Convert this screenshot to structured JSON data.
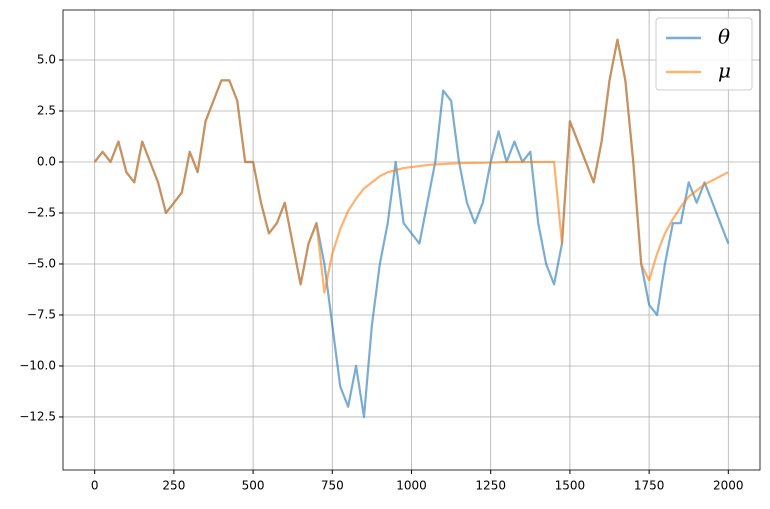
{
  "chart_data": {
    "type": "line",
    "x": [
      0,
      25,
      50,
      75,
      100,
      125,
      150,
      175,
      200,
      225,
      250,
      275,
      300,
      325,
      350,
      375,
      400,
      425,
      450,
      475,
      500,
      525,
      550,
      575,
      600,
      625,
      650,
      675,
      700,
      725,
      750,
      775,
      800,
      825,
      850,
      875,
      900,
      925,
      950,
      975,
      1000,
      1025,
      1050,
      1075,
      1100,
      1125,
      1150,
      1175,
      1200,
      1225,
      1250,
      1275,
      1300,
      1325,
      1350,
      1375,
      1400,
      1425,
      1450,
      1475,
      1500,
      1525,
      1550,
      1575,
      1600,
      1625,
      1650,
      1675,
      1700,
      1725,
      1750,
      1775,
      1800,
      1825,
      1850,
      1875,
      1900,
      1925,
      1950,
      1975,
      2000
    ],
    "series": [
      {
        "name": "θ",
        "color": "#1f77b4",
        "values": [
          0,
          0.5,
          0,
          1,
          -0.5,
          -1,
          1,
          0,
          -1,
          -2.5,
          -2,
          -1.5,
          0.5,
          -0.5,
          2,
          3,
          4,
          4,
          3,
          0,
          0,
          -2,
          -3.5,
          -3,
          -2,
          -4,
          -6,
          -4,
          -3,
          -5,
          -8,
          -11,
          -12,
          -10,
          -12.5,
          -8,
          -5,
          -3,
          0,
          -3,
          -3.5,
          -4,
          -2,
          0,
          3.5,
          3,
          0,
          -2,
          -3,
          -2,
          0,
          1.5,
          0,
          1,
          0,
          0.5,
          -3,
          -5,
          -6,
          -4,
          2,
          1,
          0,
          -1,
          1,
          4,
          6,
          4,
          0,
          -5,
          -7,
          -7.5,
          -5,
          -3,
          -3,
          -1,
          -2,
          -1,
          -2,
          -3,
          -4
        ]
      },
      {
        "name": "μ",
        "color": "#ff7f0e",
        "values": [
          0,
          0.5,
          0,
          1,
          -0.5,
          -1,
          1,
          0,
          -1,
          -2.5,
          -2,
          -1.5,
          0.5,
          -0.5,
          2,
          3,
          4,
          4,
          3,
          0,
          0,
          -2,
          -3.5,
          -3,
          -2,
          -4,
          -6,
          -4,
          -3,
          -6.4,
          -4.5,
          -3.3,
          -2.4,
          -1.8,
          -1.3,
          -1,
          -0.7,
          -0.5,
          -0.4,
          -0.3,
          -0.25,
          -0.2,
          -0.15,
          -0.12,
          -0.1,
          -0.08,
          -0.06,
          -0.05,
          -0.05,
          -0.04,
          -0.03,
          -0.02,
          0,
          0,
          0,
          0,
          0,
          0,
          0,
          -4,
          2,
          1,
          0,
          -1,
          1,
          4,
          6,
          4,
          0,
          -5,
          -5.8,
          -4.5,
          -3.5,
          -2.8,
          -2.2,
          -1.7,
          -1.4,
          -1.1,
          -0.9,
          -0.7,
          -0.5
        ]
      }
    ],
    "xlim": [
      -100,
      2100
    ],
    "ylim": [
      -15.1,
      7.45
    ],
    "xticks": [
      0,
      250,
      500,
      750,
      1000,
      1250,
      1500,
      1750,
      2000
    ],
    "yticks": [
      {
        "value": 5,
        "label": "5.0"
      },
      {
        "value": 2.5,
        "label": "2.5"
      },
      {
        "value": 0,
        "label": "0.0"
      },
      {
        "value": -2.5,
        "label": "−2.5"
      },
      {
        "value": -5,
        "label": "−5.0"
      },
      {
        "value": -7.5,
        "label": "−7.5"
      },
      {
        "value": -10,
        "label": "−10.0"
      },
      {
        "value": -12.5,
        "label": "−12.5"
      }
    ],
    "grid": true,
    "legend": "upper right"
  }
}
